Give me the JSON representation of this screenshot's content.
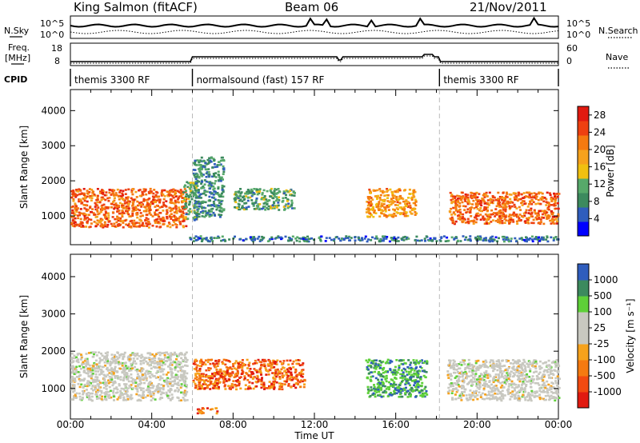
{
  "header": {
    "station": "King Salmon (fitACF)",
    "beam": "Beam 06",
    "date": "21/Nov/2011"
  },
  "side_labels": {
    "nsky": "N.Sky",
    "freq_line1": "Freq.",
    "freq_line2": "[MHz]",
    "cpid": "CPID",
    "nsearch": "N.Search",
    "nave": "Nave"
  },
  "noise_panel": {
    "left_ticks": [
      "10^5",
      "10^0"
    ],
    "right_ticks": [
      "10^5",
      "10^0"
    ]
  },
  "freq_panel": {
    "left_ticks": [
      "18",
      "8"
    ],
    "right_ticks": [
      "60",
      "0"
    ]
  },
  "cpid_segments": [
    {
      "label": "themis 3300 RF",
      "start": 0.0,
      "end": 6.0
    },
    {
      "label": "normalsound (fast) 157 RF",
      "start": 6.0,
      "end": 18.15
    },
    {
      "label": "themis 3300 RF",
      "start": 18.15,
      "end": 24.0
    }
  ],
  "colors": {
    "power_scale": [
      "#0000ff",
      "#2f5dbd",
      "#3c8a5e",
      "#57a96a",
      "#f0c010",
      "#f6a21c",
      "#f57a10",
      "#ee4010",
      "#e11a10"
    ],
    "velocity_scale": [
      "#e11a10",
      "#f24a10",
      "#f57a10",
      "#f6a21c",
      "#c8c8c0",
      "#c8c8c0",
      "#5ed038",
      "#3c8a5e",
      "#2f5dbd"
    ]
  },
  "chart_data": [
    {
      "type": "heatmap",
      "title": "Power",
      "xlabel": "Time UT",
      "ylabel": "Slant Range [km]",
      "xlim": [
        0,
        24
      ],
      "ylim": [
        180,
        4600
      ],
      "x_ticks": [
        "00:00",
        "04:00",
        "08:00",
        "12:00",
        "16:00",
        "20:00",
        "00:00"
      ],
      "y_ticks": [
        "1000",
        "2000",
        "3000",
        "4000"
      ],
      "colorbar": {
        "label": "Power [dB]",
        "ticks": [
          "4",
          "8",
          "12",
          "16",
          "20",
          "24",
          "28"
        ],
        "range": [
          0,
          30
        ]
      },
      "dashed_markers": [
        6.0,
        18.15
      ],
      "regions": [
        {
          "t": [
            0.0,
            5.7
          ],
          "r": [
            700,
            1800
          ],
          "level": 24
        },
        {
          "t": [
            5.5,
            6.2
          ],
          "r": [
            900,
            2000
          ],
          "level": 10
        },
        {
          "t": [
            6.0,
            7.5
          ],
          "r": [
            1000,
            2700
          ],
          "level": 8
        },
        {
          "t": [
            8.0,
            11.0
          ],
          "r": [
            1200,
            1800
          ],
          "level": 10
        },
        {
          "t": [
            14.5,
            17.0
          ],
          "r": [
            1000,
            1800
          ],
          "level": 20
        },
        {
          "t": [
            18.6,
            24.0
          ],
          "r": [
            800,
            1700
          ],
          "level": 24
        },
        {
          "t": [
            5.8,
            24.0
          ],
          "r": [
            300,
            450
          ],
          "level": 6
        }
      ]
    },
    {
      "type": "heatmap",
      "title": "Velocity",
      "xlabel": "Time UT",
      "ylabel": "Slant Range [km]",
      "xlim": [
        0,
        24
      ],
      "ylim": [
        180,
        4600
      ],
      "x_ticks": [
        "00:00",
        "04:00",
        "08:00",
        "12:00",
        "16:00",
        "20:00",
        "00:00"
      ],
      "y_ticks": [
        "1000",
        "2000",
        "3000",
        "4000"
      ],
      "colorbar": {
        "label": "Velocity [m s⁻¹]",
        "ticks": [
          "1000",
          "500",
          "100",
          "25",
          "-25",
          "-100",
          "-500",
          "-1000"
        ]
      },
      "dashed_markers": [
        6.0,
        18.15
      ],
      "regions": [
        {
          "t": [
            0.0,
            5.7
          ],
          "r": [
            700,
            2000
          ],
          "value": 0
        },
        {
          "t": [
            6.0,
            11.5
          ],
          "r": [
            1000,
            1800
          ],
          "value": -300
        },
        {
          "t": [
            14.5,
            17.5
          ],
          "r": [
            800,
            1800
          ],
          "value": 200
        },
        {
          "t": [
            18.5,
            24.0
          ],
          "r": [
            700,
            1800
          ],
          "value": 0
        },
        {
          "t": [
            6.2,
            7.2
          ],
          "r": [
            350,
            500
          ],
          "value": -150
        }
      ]
    }
  ]
}
